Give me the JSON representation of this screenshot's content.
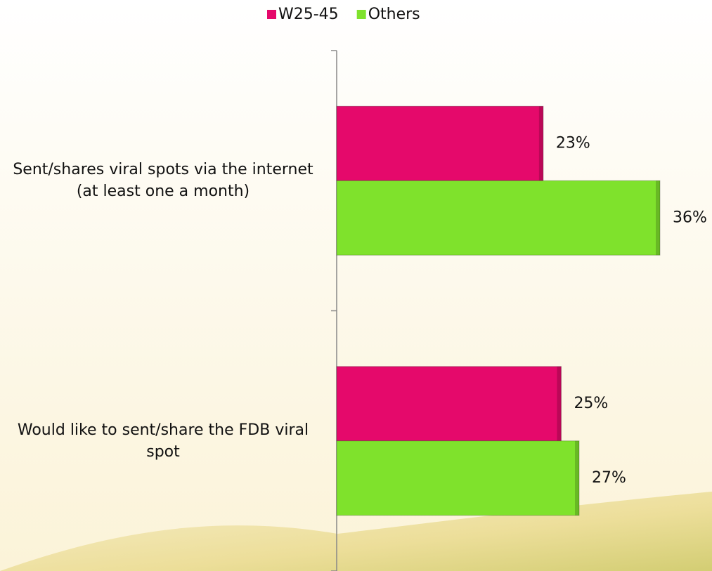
{
  "chart_data": {
    "type": "bar",
    "orientation": "horizontal",
    "categories": [
      "Sent/shares viral spots via the internet (at least one a month)",
      "Would like to sent/share the FDB viral spot"
    ],
    "series": [
      {
        "name": "W25-45",
        "color": "#e5096b",
        "values": [
          23,
          25
        ],
        "value_labels": [
          "23%",
          "25%"
        ]
      },
      {
        "name": "Others",
        "color": "#7fe22c",
        "values": [
          36,
          27
        ],
        "value_labels": [
          "36%",
          "27%"
        ]
      }
    ],
    "legend": "top"
  }
}
